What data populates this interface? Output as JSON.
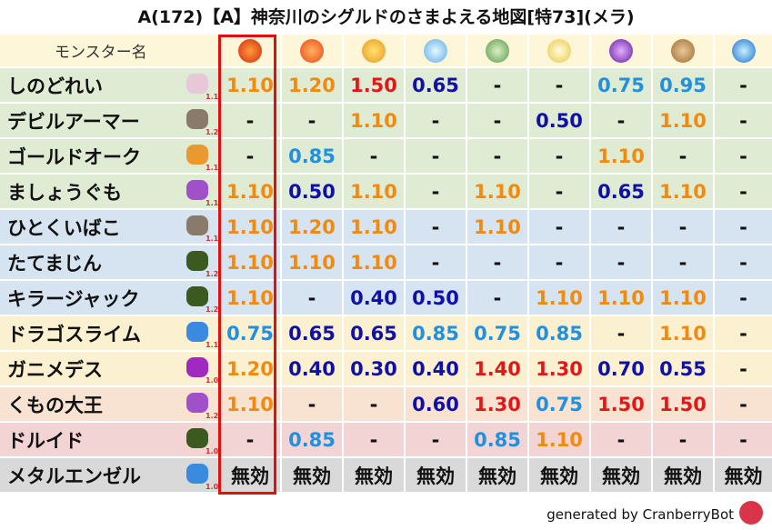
{
  "title": "A(172)【A】神奈川のシグルドのさまよえる地図[特73](メラ)",
  "header": {
    "name_column": "モンスター名"
  },
  "rows": [
    {
      "name": "しのどれい",
      "level": "1.1",
      "values": [
        "1.10",
        "1.20",
        "1.50",
        "0.65",
        "-",
        "-",
        "0.75",
        "0.95",
        "-"
      ]
    },
    {
      "name": "デビルアーマー",
      "level": "1.2",
      "values": [
        "-",
        "-",
        "1.10",
        "-",
        "-",
        "0.50",
        "-",
        "1.10",
        "-"
      ]
    },
    {
      "name": "ゴールドオーク",
      "level": "1.1",
      "values": [
        "-",
        "0.85",
        "-",
        "-",
        "-",
        "-",
        "1.10",
        "-",
        "-"
      ]
    },
    {
      "name": "ましょうぐも",
      "level": "1.1",
      "values": [
        "1.10",
        "0.50",
        "1.10",
        "-",
        "1.10",
        "-",
        "0.65",
        "1.10",
        "-"
      ]
    },
    {
      "name": "ひとくいばこ",
      "level": "1.1",
      "values": [
        "1.10",
        "1.20",
        "1.10",
        "-",
        "1.10",
        "-",
        "-",
        "-",
        "-"
      ]
    },
    {
      "name": "たてまじん",
      "level": "1.2",
      "values": [
        "1.10",
        "1.10",
        "1.10",
        "-",
        "-",
        "-",
        "-",
        "-",
        "-"
      ]
    },
    {
      "name": "キラージャック",
      "level": "1.2",
      "values": [
        "1.10",
        "-",
        "0.40",
        "0.50",
        "-",
        "1.10",
        "1.10",
        "1.10",
        "-"
      ]
    },
    {
      "name": "ドラゴスライム",
      "level": "1.1",
      "values": [
        "0.75",
        "0.65",
        "0.65",
        "0.85",
        "0.75",
        "0.85",
        "-",
        "1.10",
        "-"
      ]
    },
    {
      "name": "ガニメデス",
      "level": "1.0",
      "values": [
        "1.20",
        "0.40",
        "0.30",
        "0.40",
        "1.40",
        "1.30",
        "0.70",
        "0.55",
        "-"
      ]
    },
    {
      "name": "くもの大王",
      "level": "1.2",
      "values": [
        "1.10",
        "-",
        "-",
        "0.60",
        "1.30",
        "0.75",
        "1.50",
        "1.50",
        "-"
      ]
    },
    {
      "name": "ドルイド",
      "level": "1.0",
      "values": [
        "-",
        "0.85",
        "-",
        "-",
        "0.85",
        "1.10",
        "-",
        "-",
        "-"
      ]
    },
    {
      "name": "メタルエンゼル",
      "level": "1.0",
      "values": [
        "無効",
        "無効",
        "無効",
        "無効",
        "無効",
        "無効",
        "無効",
        "無効",
        "無効"
      ]
    }
  ],
  "footer": "generated by CranberryBot"
}
